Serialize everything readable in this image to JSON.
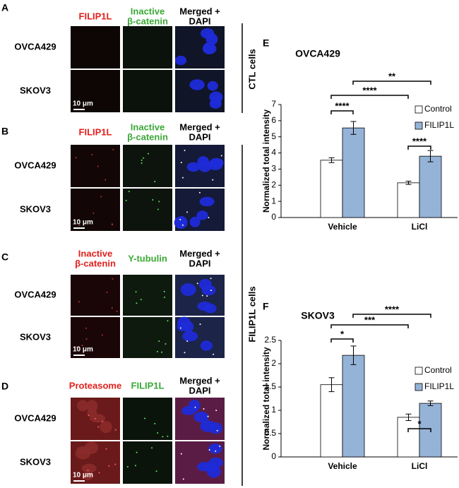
{
  "panels": [
    {
      "letter": "A",
      "columns": [
        [
          "FILIP1L"
        ],
        [
          "Inactive",
          "β-catenin"
        ],
        [
          "Merged +",
          "DAPI"
        ]
      ],
      "rows": [
        "OVCA429",
        "SKOV3"
      ],
      "scale_bar": "10 μm"
    },
    {
      "letter": "B",
      "columns": [
        [
          "FILIP1L"
        ],
        [
          "Inactive",
          "β-catenin"
        ],
        [
          "Merged +",
          "DAPI"
        ]
      ],
      "rows": [
        "OVCA429",
        "SKOV3"
      ],
      "scale_bar": "10 μm"
    },
    {
      "letter": "C",
      "columns": [
        [
          "Inactive",
          "β-catenin"
        ],
        [
          "Υ-tubulin"
        ],
        [
          "Merged +",
          "DAPI"
        ]
      ],
      "rows": [
        "OVCA429",
        "SKOV3"
      ],
      "scale_bar": "10 μm"
    },
    {
      "letter": "D",
      "columns": [
        [
          "Proteasome"
        ],
        [
          "FILIP1L"
        ],
        [
          "Merged +",
          "DAPI"
        ]
      ],
      "rows": [
        "OVCA429",
        "SKOV3"
      ],
      "scale_bar": "10 μm"
    }
  ],
  "groups": [
    "CTL cells",
    "FILIP1L cells"
  ],
  "chart_data": [
    {
      "type": "bar",
      "panel": "E",
      "title": "OVCA429",
      "ylabel": "Normalized total intensity",
      "categories": [
        "Vehicle",
        "LiCl"
      ],
      "series": [
        {
          "name": "Control",
          "color": "#ffffff",
          "values": [
            3.55,
            2.15
          ],
          "errors": [
            0.15,
            0.1
          ]
        },
        {
          "name": "FILIP1L",
          "color": "#95b3d7",
          "values": [
            5.55,
            3.8
          ],
          "errors": [
            0.4,
            0.35
          ]
        }
      ],
      "ylim": [
        0,
        7
      ],
      "yticks": [
        0,
        1,
        2,
        3,
        4,
        5,
        6,
        7
      ],
      "annotations": [
        "****",
        "****",
        "****",
        "**"
      ]
    },
    {
      "type": "bar",
      "panel": "F",
      "title": "SKOV3",
      "ylabel": "Normalized total intensity",
      "categories": [
        "Vehicle",
        "LiCl"
      ],
      "series": [
        {
          "name": "Control",
          "color": "#ffffff",
          "values": [
            1.55,
            0.85
          ],
          "errors": [
            0.15,
            0.07
          ]
        },
        {
          "name": "FILIP1L",
          "color": "#95b3d7",
          "values": [
            2.18,
            1.15
          ],
          "errors": [
            0.2,
            0.05
          ]
        }
      ],
      "ylim": [
        0,
        2.5
      ],
      "yticks": [
        0,
        0.5,
        1,
        1.5,
        2,
        2.5
      ],
      "annotations": [
        "*",
        "*",
        "***",
        "****"
      ]
    }
  ]
}
